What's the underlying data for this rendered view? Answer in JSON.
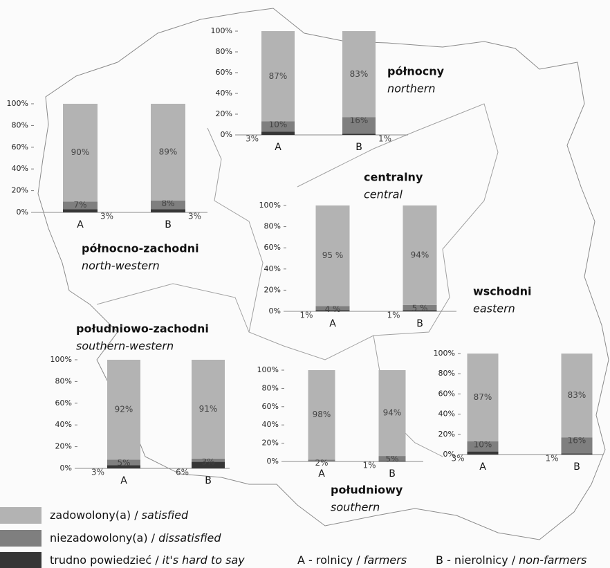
{
  "chart_data": [
    {
      "type": "bar",
      "stacked": true,
      "title": "północny",
      "subtitle": "northern",
      "categories": [
        "A",
        "B"
      ],
      "series": [
        {
          "color": "#b3b3b3",
          "values": [
            87,
            83
          ],
          "value_labels": [
            "87%",
            "83%"
          ]
        },
        {
          "color": "#7f7f7f",
          "values": [
            10,
            16
          ],
          "value_labels": [
            "10%",
            "16%"
          ]
        },
        {
          "color": "#363636",
          "values": [
            3,
            1
          ],
          "value_labels": [
            "3%",
            "1%"
          ]
        }
      ],
      "ylim": [
        0,
        100
      ],
      "yticks": [
        {
          "value": 0,
          "label": "0%"
        },
        {
          "value": 20,
          "label": "20%"
        },
        {
          "value": 40,
          "label": "40%"
        },
        {
          "value": 60,
          "label": "60%"
        },
        {
          "value": 80,
          "label": "80%"
        },
        {
          "value": 100,
          "label": "100%"
        }
      ]
    },
    {
      "type": "bar",
      "stacked": true,
      "title": "północno-zachodni",
      "subtitle": "north-western",
      "categories": [
        "A",
        "B"
      ],
      "series": [
        {
          "color": "#b3b3b3",
          "values": [
            90,
            89
          ],
          "value_labels": [
            "90%",
            "89%"
          ]
        },
        {
          "color": "#7f7f7f",
          "values": [
            7,
            8
          ],
          "value_labels": [
            "7%",
            "8%"
          ]
        },
        {
          "color": "#363636",
          "values": [
            3,
            3
          ],
          "value_labels": [
            "3%",
            "3%"
          ]
        }
      ],
      "ylim": [
        0,
        100
      ],
      "yticks": [
        {
          "value": 0,
          "label": "0%"
        },
        {
          "value": 20,
          "label": "20%"
        },
        {
          "value": 40,
          "label": "40%"
        },
        {
          "value": 60,
          "label": "60%"
        },
        {
          "value": 80,
          "label": "80%"
        },
        {
          "value": 100,
          "label": "100%"
        }
      ]
    },
    {
      "type": "bar",
      "stacked": true,
      "title": "centralny",
      "subtitle": "central",
      "categories": [
        "A",
        "B"
      ],
      "series": [
        {
          "color": "#b3b3b3",
          "values": [
            95,
            94
          ],
          "value_labels": [
            "95 %",
            "94%"
          ]
        },
        {
          "color": "#7f7f7f",
          "values": [
            4,
            5
          ],
          "value_labels": [
            "4 %",
            "5 %"
          ]
        },
        {
          "color": "#363636",
          "values": [
            1,
            1
          ],
          "value_labels": [
            "1%",
            "1%"
          ]
        }
      ],
      "ylim": [
        0,
        100
      ],
      "yticks": [
        {
          "value": 0,
          "label": "0%"
        },
        {
          "value": 20,
          "label": "20%"
        },
        {
          "value": 40,
          "label": "40%"
        },
        {
          "value": 60,
          "label": "60%"
        },
        {
          "value": 80,
          "label": "80%"
        },
        {
          "value": 100,
          "label": "100%"
        }
      ]
    },
    {
      "type": "bar",
      "stacked": true,
      "title": "wschodni",
      "subtitle": "eastern",
      "categories": [
        "A",
        "B"
      ],
      "series": [
        {
          "color": "#b3b3b3",
          "values": [
            87,
            83
          ],
          "value_labels": [
            "87%",
            "83%"
          ]
        },
        {
          "color": "#7f7f7f",
          "values": [
            10,
            16
          ],
          "value_labels": [
            "10%",
            "16%"
          ]
        },
        {
          "color": "#363636",
          "values": [
            3,
            1
          ],
          "value_labels": [
            "3%",
            "1%"
          ]
        }
      ],
      "ylim": [
        0,
        100
      ],
      "yticks": [
        {
          "value": 0,
          "label": "0%"
        },
        {
          "value": 20,
          "label": "20%"
        },
        {
          "value": 40,
          "label": "40%"
        },
        {
          "value": 60,
          "label": "60%"
        },
        {
          "value": 80,
          "label": "80%"
        },
        {
          "value": 100,
          "label": "100%"
        }
      ]
    },
    {
      "type": "bar",
      "stacked": true,
      "title": "południowo-zachodni",
      "subtitle": "southern-western",
      "categories": [
        "A",
        "B"
      ],
      "series": [
        {
          "color": "#b3b3b3",
          "values": [
            92,
            91
          ],
          "value_labels": [
            "92%",
            "91%"
          ]
        },
        {
          "color": "#7f7f7f",
          "values": [
            5,
            3
          ],
          "value_labels": [
            "5%",
            "3%"
          ]
        },
        {
          "color": "#363636",
          "values": [
            3,
            6
          ],
          "value_labels": [
            "3%",
            "6%"
          ]
        }
      ],
      "ylim": [
        0,
        100
      ],
      "yticks": [
        {
          "value": 0,
          "label": "0%"
        },
        {
          "value": 20,
          "label": "20%"
        },
        {
          "value": 40,
          "label": "40%"
        },
        {
          "value": 60,
          "label": "60%"
        },
        {
          "value": 80,
          "label": "80%"
        },
        {
          "value": 100,
          "label": "100%"
        }
      ]
    },
    {
      "type": "bar",
      "stacked": true,
      "title": "południowy",
      "subtitle": "southern",
      "categories": [
        "A",
        "B"
      ],
      "series": [
        {
          "color": "#b3b3b3",
          "values": [
            98,
            94
          ],
          "value_labels": [
            "98%",
            "94%"
          ]
        },
        {
          "color": "#7f7f7f",
          "values": [
            2,
            5
          ],
          "value_labels": [
            "2%",
            "5%"
          ]
        },
        {
          "color": "#363636",
          "values": [
            null,
            1
          ],
          "value_labels": [
            null,
            "1%"
          ]
        }
      ],
      "ylim": [
        0,
        100
      ],
      "yticks": [
        {
          "value": 0,
          "label": "0%"
        },
        {
          "value": 20,
          "label": "20%"
        },
        {
          "value": 40,
          "label": "40%"
        },
        {
          "value": 60,
          "label": "60%"
        },
        {
          "value": 80,
          "label": "80%"
        },
        {
          "value": 100,
          "label": "100%"
        }
      ]
    }
  ],
  "legend": [
    {
      "pl": "zadowolony(a) /",
      "en": "satisfied",
      "color": "#b3b3b3"
    },
    {
      "pl": "niezadowolony(a) /",
      "en": "dissatisfied",
      "color": "#7f7f7f"
    },
    {
      "pl": "trudno powiedzieć /",
      "en": "it's hard to say",
      "color": "#363636"
    }
  ],
  "category_key": [
    {
      "pl": "A - rolnicy /",
      "en": "farmers"
    },
    {
      "pl": "B - nierolnicy /",
      "en": "non-farmers"
    }
  ]
}
